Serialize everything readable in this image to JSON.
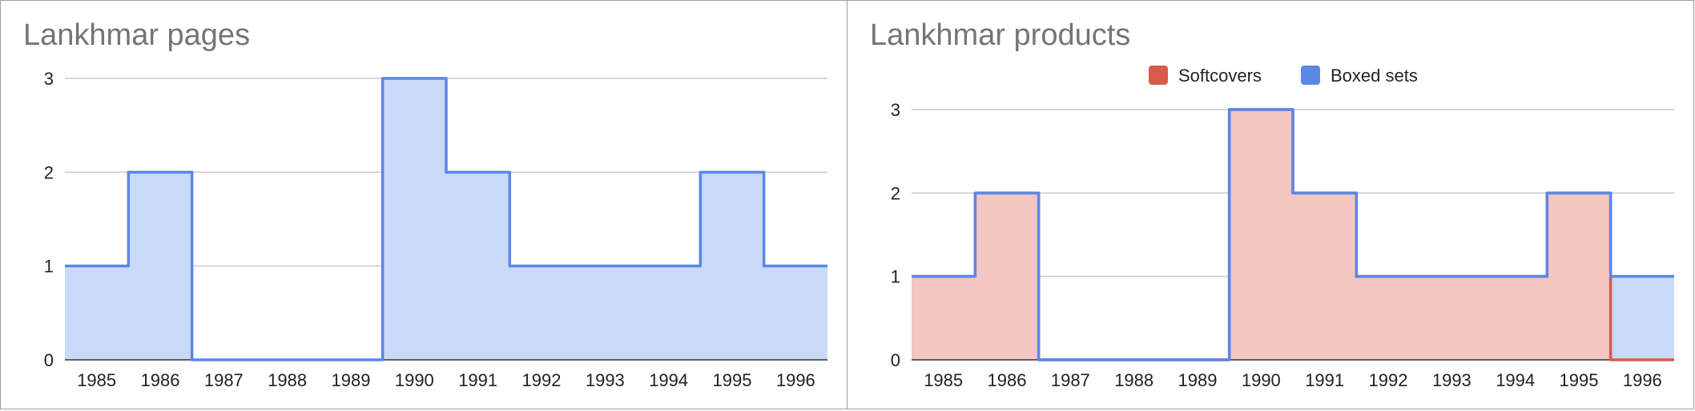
{
  "colors": {
    "blue_line": "#5b87e6",
    "blue_fill": "#c9d9f8",
    "red_line": "#d85a4a",
    "red_fill": "#f2c6c2",
    "grid": "#c8c8c8",
    "baseline": "#333333",
    "title": "#757575"
  },
  "chart_data": [
    {
      "type": "area",
      "step": true,
      "title": "Lankhmar pages",
      "categories": [
        "1985",
        "1986",
        "1987",
        "1988",
        "1989",
        "1990",
        "1991",
        "1992",
        "1993",
        "1994",
        "1995",
        "1996"
      ],
      "ylim": [
        0,
        3
      ],
      "yticks": [
        "0",
        "1",
        "2",
        "3"
      ],
      "grid": true,
      "legend": "none",
      "series": [
        {
          "values": [
            1,
            2,
            0,
            0,
            0,
            3,
            2,
            1,
            1,
            1,
            2,
            1
          ],
          "color": "#5b87e6"
        }
      ]
    },
    {
      "type": "area",
      "step": true,
      "stacked": true,
      "title": "Lankhmar products",
      "categories": [
        "1985",
        "1986",
        "1987",
        "1988",
        "1989",
        "1990",
        "1991",
        "1992",
        "1993",
        "1994",
        "1995",
        "1996"
      ],
      "ylim": [
        0,
        3
      ],
      "yticks": [
        "0",
        "1",
        "2",
        "3"
      ],
      "grid": true,
      "legend": "top",
      "series": [
        {
          "name": "Softcovers",
          "values": [
            1,
            2,
            0,
            0,
            0,
            3,
            2,
            1,
            1,
            1,
            2,
            0
          ],
          "color": "#d85a4a"
        },
        {
          "name": "Boxed sets",
          "values": [
            0,
            0,
            0,
            0,
            0,
            0,
            0,
            0,
            0,
            0,
            0,
            1
          ],
          "color": "#5b87e6"
        }
      ]
    }
  ]
}
